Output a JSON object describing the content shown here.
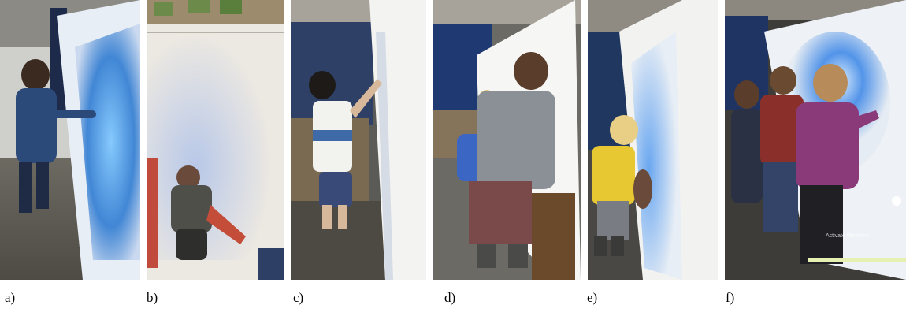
{
  "figure": {
    "panels": [
      {
        "id": "a",
        "label": "a)"
      },
      {
        "id": "b",
        "label": "b)"
      },
      {
        "id": "c",
        "label": "c)"
      },
      {
        "id": "d",
        "label": "d)"
      },
      {
        "id": "e",
        "label": "e)"
      },
      {
        "id": "f",
        "label": "f)"
      }
    ],
    "watermark_text": "Activate Windows"
  }
}
